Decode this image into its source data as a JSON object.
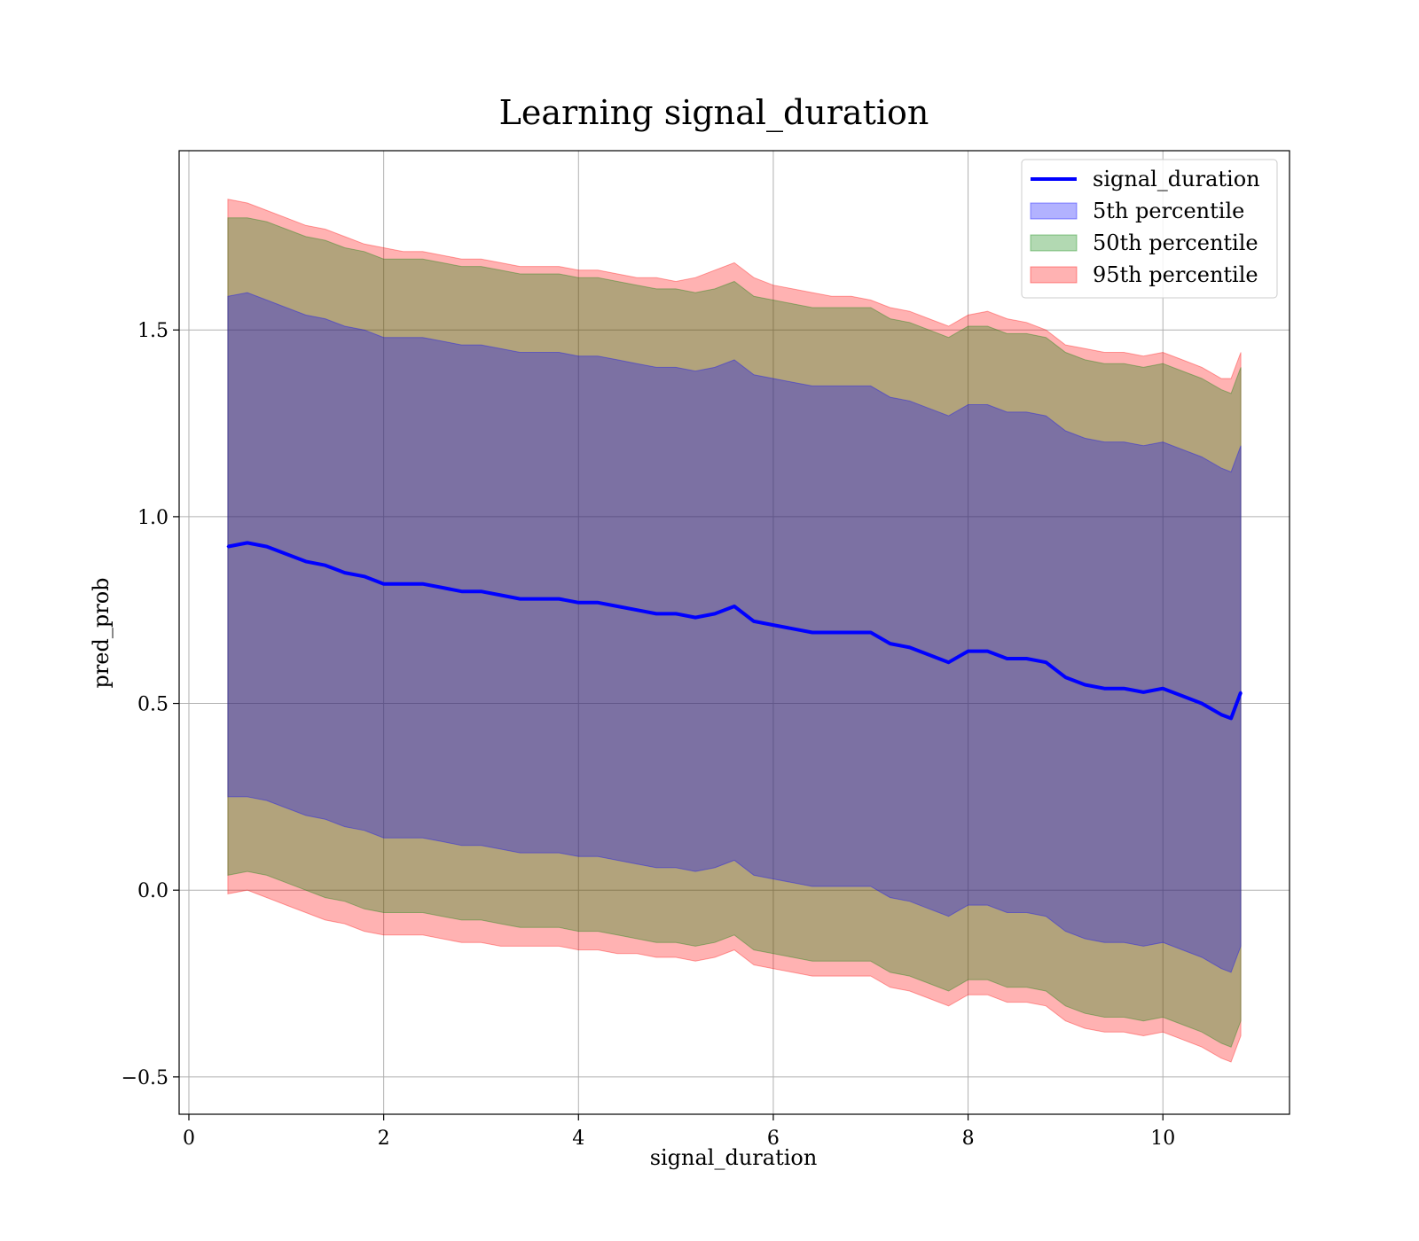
{
  "chart_data": {
    "type": "area",
    "title": "Learning signal_duration",
    "xlabel": "signal_duration",
    "ylabel": "pred_prob",
    "xlim": [
      -0.1,
      11.3
    ],
    "ylim": [
      -0.6,
      1.98
    ],
    "grid": true,
    "legend_position": "top-right",
    "x_ticks": [
      {
        "value": 0,
        "label": "0"
      },
      {
        "value": 2,
        "label": "2"
      },
      {
        "value": 4,
        "label": "4"
      },
      {
        "value": 6,
        "label": "6"
      },
      {
        "value": 8,
        "label": "8"
      },
      {
        "value": 10,
        "label": "10"
      }
    ],
    "y_ticks": [
      {
        "value": -0.5,
        "label": "−0.5"
      },
      {
        "value": 0.0,
        "label": "0.0"
      },
      {
        "value": 0.5,
        "label": "0.5"
      },
      {
        "value": 1.0,
        "label": "1.0"
      },
      {
        "value": 1.5,
        "label": "1.5"
      }
    ],
    "line": {
      "name": "signal_duration",
      "color": "#0000ff",
      "x": [
        0.4,
        0.6,
        0.8,
        1.0,
        1.2,
        1.4,
        1.6,
        1.8,
        2.0,
        2.2,
        2.4,
        2.6,
        2.8,
        3.0,
        3.2,
        3.4,
        3.6,
        3.8,
        4.0,
        4.2,
        4.4,
        4.6,
        4.8,
        5.0,
        5.2,
        5.4,
        5.6,
        5.8,
        6.0,
        6.2,
        6.4,
        6.6,
        6.8,
        7.0,
        7.2,
        7.4,
        7.6,
        7.8,
        8.0,
        8.2,
        8.4,
        8.6,
        8.8,
        9.0,
        9.2,
        9.4,
        9.6,
        9.8,
        10.0,
        10.2,
        10.4,
        10.6,
        10.7,
        10.8
      ],
      "y": [
        0.92,
        0.93,
        0.92,
        0.9,
        0.88,
        0.87,
        0.85,
        0.84,
        0.82,
        0.82,
        0.82,
        0.81,
        0.8,
        0.8,
        0.79,
        0.78,
        0.78,
        0.78,
        0.77,
        0.77,
        0.76,
        0.75,
        0.74,
        0.74,
        0.73,
        0.74,
        0.76,
        0.72,
        0.71,
        0.7,
        0.69,
        0.69,
        0.69,
        0.69,
        0.66,
        0.65,
        0.63,
        0.61,
        0.64,
        0.64,
        0.62,
        0.62,
        0.61,
        0.57,
        0.55,
        0.54,
        0.54,
        0.53,
        0.54,
        0.52,
        0.5,
        0.47,
        0.46,
        0.53
      ]
    },
    "bands": [
      {
        "name": "95th percentile",
        "color": "#ff0000",
        "fill_opacity": 0.3,
        "upper": [
          1.85,
          1.84,
          1.82,
          1.8,
          1.78,
          1.77,
          1.75,
          1.73,
          1.72,
          1.71,
          1.71,
          1.7,
          1.69,
          1.69,
          1.68,
          1.67,
          1.67,
          1.67,
          1.66,
          1.66,
          1.65,
          1.64,
          1.64,
          1.63,
          1.64,
          1.66,
          1.68,
          1.64,
          1.62,
          1.61,
          1.6,
          1.59,
          1.59,
          1.58,
          1.56,
          1.55,
          1.53,
          1.51,
          1.54,
          1.55,
          1.53,
          1.52,
          1.5,
          1.46,
          1.45,
          1.44,
          1.44,
          1.43,
          1.44,
          1.42,
          1.4,
          1.37,
          1.37,
          1.44
        ],
        "lower": [
          -0.01,
          0.0,
          -0.02,
          -0.04,
          -0.06,
          -0.08,
          -0.09,
          -0.11,
          -0.12,
          -0.12,
          -0.12,
          -0.13,
          -0.14,
          -0.14,
          -0.15,
          -0.15,
          -0.15,
          -0.15,
          -0.16,
          -0.16,
          -0.17,
          -0.17,
          -0.18,
          -0.18,
          -0.19,
          -0.18,
          -0.16,
          -0.2,
          -0.21,
          -0.22,
          -0.23,
          -0.23,
          -0.23,
          -0.23,
          -0.26,
          -0.27,
          -0.29,
          -0.31,
          -0.28,
          -0.28,
          -0.3,
          -0.3,
          -0.31,
          -0.35,
          -0.37,
          -0.38,
          -0.38,
          -0.39,
          -0.38,
          -0.4,
          -0.42,
          -0.45,
          -0.46,
          -0.39
        ]
      },
      {
        "name": "50th percentile",
        "color": "#008000",
        "fill_opacity": 0.3,
        "upper": [
          1.8,
          1.8,
          1.79,
          1.77,
          1.75,
          1.74,
          1.72,
          1.71,
          1.69,
          1.69,
          1.69,
          1.68,
          1.67,
          1.67,
          1.66,
          1.65,
          1.65,
          1.65,
          1.64,
          1.64,
          1.63,
          1.62,
          1.61,
          1.61,
          1.6,
          1.61,
          1.63,
          1.59,
          1.58,
          1.57,
          1.56,
          1.56,
          1.56,
          1.56,
          1.53,
          1.52,
          1.5,
          1.48,
          1.51,
          1.51,
          1.49,
          1.49,
          1.48,
          1.44,
          1.42,
          1.41,
          1.41,
          1.4,
          1.41,
          1.39,
          1.37,
          1.34,
          1.33,
          1.4
        ],
        "lower": [
          0.04,
          0.05,
          0.04,
          0.02,
          0.0,
          -0.02,
          -0.03,
          -0.05,
          -0.06,
          -0.06,
          -0.06,
          -0.07,
          -0.08,
          -0.08,
          -0.09,
          -0.1,
          -0.1,
          -0.1,
          -0.11,
          -0.11,
          -0.12,
          -0.13,
          -0.14,
          -0.14,
          -0.15,
          -0.14,
          -0.12,
          -0.16,
          -0.17,
          -0.18,
          -0.19,
          -0.19,
          -0.19,
          -0.19,
          -0.22,
          -0.23,
          -0.25,
          -0.27,
          -0.24,
          -0.24,
          -0.26,
          -0.26,
          -0.27,
          -0.31,
          -0.33,
          -0.34,
          -0.34,
          -0.35,
          -0.34,
          -0.36,
          -0.38,
          -0.41,
          -0.42,
          -0.35
        ]
      },
      {
        "name": "5th percentile",
        "color": "#0000ff",
        "fill_opacity": 0.3,
        "upper": [
          1.59,
          1.6,
          1.58,
          1.56,
          1.54,
          1.53,
          1.51,
          1.5,
          1.48,
          1.48,
          1.48,
          1.47,
          1.46,
          1.46,
          1.45,
          1.44,
          1.44,
          1.44,
          1.43,
          1.43,
          1.42,
          1.41,
          1.4,
          1.4,
          1.39,
          1.4,
          1.42,
          1.38,
          1.37,
          1.36,
          1.35,
          1.35,
          1.35,
          1.35,
          1.32,
          1.31,
          1.29,
          1.27,
          1.3,
          1.3,
          1.28,
          1.28,
          1.27,
          1.23,
          1.21,
          1.2,
          1.2,
          1.19,
          1.2,
          1.18,
          1.16,
          1.13,
          1.12,
          1.19
        ],
        "lower": [
          0.25,
          0.25,
          0.24,
          0.22,
          0.2,
          0.19,
          0.17,
          0.16,
          0.14,
          0.14,
          0.14,
          0.13,
          0.12,
          0.12,
          0.11,
          0.1,
          0.1,
          0.1,
          0.09,
          0.09,
          0.08,
          0.07,
          0.06,
          0.06,
          0.05,
          0.06,
          0.08,
          0.04,
          0.03,
          0.02,
          0.01,
          0.01,
          0.01,
          0.01,
          -0.02,
          -0.03,
          -0.05,
          -0.07,
          -0.04,
          -0.04,
          -0.06,
          -0.06,
          -0.07,
          -0.11,
          -0.13,
          -0.14,
          -0.14,
          -0.15,
          -0.14,
          -0.16,
          -0.18,
          -0.21,
          -0.22,
          -0.15
        ]
      }
    ],
    "legend": [
      {
        "label": "signal_duration",
        "kind": "line",
        "color": "#0000ff"
      },
      {
        "label": "5th percentile",
        "kind": "patch",
        "color": "#0000ff"
      },
      {
        "label": "50th percentile",
        "kind": "patch",
        "color": "#008000"
      },
      {
        "label": "95th percentile",
        "kind": "patch",
        "color": "#ff0000"
      }
    ]
  }
}
